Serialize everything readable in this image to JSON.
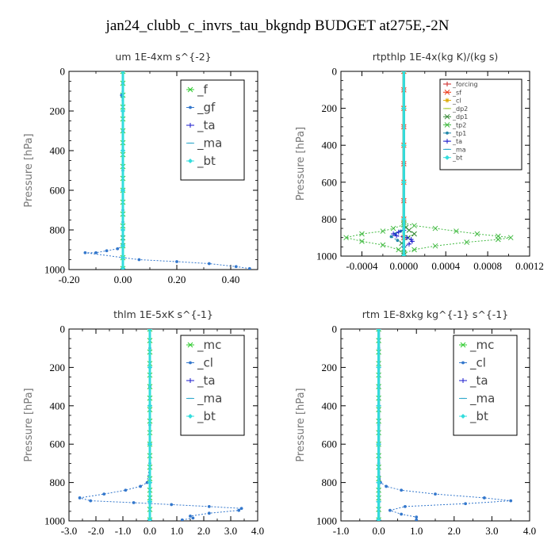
{
  "figure_title": "jan24_clubb_c_invrs_tau_bkgndp  BUDGET at275E,-2N",
  "chart_data": [
    {
      "type": "line",
      "title": "um  1E-4xm s^{-2}",
      "ylabel": "Pressure [hPa]",
      "xlim": [
        -0.2,
        0.5
      ],
      "ylim": [
        1000,
        0
      ],
      "xticks": [
        "-0.20",
        "0.00",
        "0.20",
        "0.40"
      ],
      "xtick_values": [
        -0.2,
        0.0,
        0.2,
        0.4
      ],
      "yticks": [
        0,
        200,
        400,
        600,
        800,
        1000
      ],
      "legend_size": "big",
      "series": [
        {
          "name": "_f",
          "color": "#33cc33",
          "marker": "x",
          "x": [
            0,
            0,
            0,
            0,
            0,
            0,
            0,
            0,
            0,
            0,
            0,
            0,
            0,
            0,
            0,
            0,
            0,
            0
          ],
          "y": [
            0,
            60,
            120,
            180,
            240,
            300,
            360,
            420,
            480,
            540,
            600,
            660,
            720,
            780,
            840,
            880,
            940,
            995
          ]
        },
        {
          "name": "_gf",
          "color": "#3377cc",
          "marker": "dot",
          "x": [
            0,
            0,
            -0.005,
            0,
            0,
            0,
            0,
            0,
            0,
            0,
            0,
            0,
            0,
            0,
            0,
            -0.02,
            -0.06,
            -0.1,
            -0.14,
            0.06,
            0.2,
            0.32,
            0.42,
            0.47
          ],
          "y": [
            0,
            60,
            120,
            200,
            300,
            400,
            500,
            600,
            700,
            760,
            800,
            830,
            850,
            870,
            880,
            895,
            905,
            915,
            915,
            950,
            960,
            970,
            985,
            995
          ]
        },
        {
          "name": "_ta",
          "color": "#1a1acc",
          "marker": "plus",
          "x": [
            0,
            0,
            0,
            0,
            0,
            0,
            0,
            0
          ],
          "y": [
            0,
            200,
            400,
            600,
            800,
            880,
            940,
            995
          ]
        },
        {
          "name": "_ma",
          "color": "#33aacc",
          "marker": "dash",
          "x": [
            0,
            0,
            0,
            0,
            0,
            0,
            0,
            0
          ],
          "y": [
            0,
            200,
            400,
            600,
            800,
            880,
            940,
            995
          ]
        },
        {
          "name": "_bt",
          "color": "#33dddd",
          "marker": "diamond",
          "x": [
            0,
            0,
            0,
            0,
            0,
            0,
            0,
            0
          ],
          "y": [
            0,
            200,
            400,
            600,
            800,
            880,
            940,
            995
          ]
        }
      ]
    },
    {
      "type": "line",
      "title": "rtpthlp  1E-4x(kg K)/(kg s)",
      "ylabel": "Pressure [hPa]",
      "xlim": [
        -0.0006,
        0.0012
      ],
      "ylim": [
        1000,
        0
      ],
      "xticks": [
        "-0.0004",
        "0.0000",
        "0.0004",
        "0.0008",
        "0.0012"
      ],
      "xtick_values": [
        -0.0004,
        0.0,
        0.0004,
        0.0008,
        0.0012
      ],
      "yticks": [
        0,
        200,
        400,
        600,
        800,
        1000
      ],
      "legend_size": "small",
      "series": [
        {
          "name": "_forcing",
          "color": "#cc2222",
          "marker": "plus",
          "x": [
            0,
            0,
            0,
            0,
            0,
            0,
            0,
            0,
            0,
            0,
            0
          ],
          "y": [
            0,
            100,
            200,
            300,
            400,
            500,
            600,
            700,
            800,
            900,
            995
          ]
        },
        {
          "name": "_sf",
          "color": "#ee3311",
          "marker": "x",
          "x": [
            0,
            0,
            0,
            0,
            0,
            0,
            0,
            0,
            0,
            0,
            0
          ],
          "y": [
            0,
            100,
            200,
            300,
            400,
            500,
            600,
            700,
            800,
            900,
            995
          ]
        },
        {
          "name": "_cl",
          "color": "#ddaa00",
          "marker": "star",
          "x": [
            0,
            0,
            0,
            0,
            0,
            0
          ],
          "y": [
            0,
            200,
            400,
            600,
            800,
            995
          ]
        },
        {
          "name": "_dp2",
          "color": "#aacc33",
          "marker": "dash",
          "x": [
            0,
            0,
            0,
            0,
            0,
            0
          ],
          "y": [
            0,
            200,
            400,
            600,
            800,
            995
          ]
        },
        {
          "name": "_dp1",
          "color": "#338833",
          "marker": "x",
          "x": [
            0,
            2e-05,
            5e-05,
            0.0001,
            4e-05,
            -2e-05,
            0,
            0
          ],
          "y": [
            830,
            845,
            860,
            880,
            900,
            930,
            960,
            995
          ]
        },
        {
          "name": "_tp2",
          "color": "#44bb44",
          "marker": "x",
          "x": [
            0,
            0.0001,
            0.0003,
            0.0005,
            0.0007,
            0.0009,
            0.00102,
            0.0009,
            0.0006,
            0.0003,
            0.0001,
            0,
            0,
            -0.0001,
            -0.0002,
            -0.0004,
            -0.00055,
            -0.0004,
            -0.0002,
            -5e-05,
            0
          ],
          "y": [
            820,
            835,
            850,
            865,
            880,
            892,
            900,
            910,
            925,
            945,
            965,
            985,
            830,
            850,
            865,
            880,
            900,
            920,
            940,
            965,
            985
          ]
        },
        {
          "name": "_tp1",
          "color": "#2288aa",
          "marker": "dot",
          "x": [
            0,
            -3e-05,
            -8e-05,
            -0.00012,
            -6e-05,
            0
          ],
          "y": [
            850,
            865,
            880,
            895,
            915,
            940
          ]
        },
        {
          "name": "_ta",
          "color": "#1a1acc",
          "marker": "plus",
          "x": [
            0,
            -5e-05,
            -0.0001,
            -7e-05,
            3e-05,
            7e-05,
            8e-05,
            5e-05,
            0
          ],
          "y": [
            860,
            870,
            880,
            890,
            900,
            910,
            920,
            935,
            950
          ]
        },
        {
          "name": "_ma",
          "color": "#33aacc",
          "marker": "dash",
          "x": [
            0,
            0,
            0,
            0,
            0,
            0
          ],
          "y": [
            0,
            200,
            400,
            600,
            800,
            995
          ]
        },
        {
          "name": "_bt",
          "color": "#33dddd",
          "marker": "diamond",
          "x": [
            0,
            0,
            0,
            0,
            0,
            0
          ],
          "y": [
            0,
            200,
            400,
            600,
            800,
            995
          ]
        }
      ]
    },
    {
      "type": "line",
      "title": "thlm  1E-5xK s^{-1}",
      "ylabel": "Pressure [hPa]",
      "xlim": [
        -3.0,
        4.0
      ],
      "ylim": [
        1000,
        0
      ],
      "xticks": [
        "-3.0",
        "-2.0",
        "-1.0",
        "0.0",
        "1.0",
        "2.0",
        "3.0",
        "4.0"
      ],
      "xtick_values": [
        -3,
        -2,
        -1,
        0,
        1,
        2,
        3,
        4
      ],
      "yticks": [
        0,
        200,
        400,
        600,
        800,
        1000
      ],
      "legend_size": "big",
      "series": [
        {
          "name": "_mc",
          "color": "#33cc33",
          "marker": "x",
          "x": [
            0,
            0,
            0,
            0,
            0,
            0,
            0,
            0,
            0,
            0,
            0,
            0,
            0,
            0,
            0,
            0,
            0,
            0
          ],
          "y": [
            0,
            60,
            120,
            180,
            240,
            300,
            360,
            420,
            480,
            540,
            600,
            660,
            720,
            780,
            840,
            880,
            940,
            995
          ]
        },
        {
          "name": "_cl",
          "color": "#3377cc",
          "marker": "dot",
          "x": [
            0,
            0,
            0,
            0,
            0,
            0,
            0,
            0,
            -0.1,
            -0.35,
            -0.9,
            -1.7,
            -2.6,
            -2.2,
            -0.6,
            0.8,
            2.2,
            3.4,
            3.3,
            2.2,
            1.5,
            1.6,
            1.2
          ],
          "y": [
            0,
            100,
            200,
            300,
            400,
            500,
            600,
            700,
            800,
            820,
            840,
            860,
            880,
            895,
            905,
            915,
            925,
            935,
            945,
            960,
            975,
            985,
            995
          ]
        },
        {
          "name": "_ta",
          "color": "#1a1acc",
          "marker": "plus",
          "x": [
            0,
            0,
            0,
            0,
            0,
            0,
            0
          ],
          "y": [
            0,
            200,
            400,
            600,
            800,
            900,
            995
          ]
        },
        {
          "name": "_ma",
          "color": "#33aacc",
          "marker": "dash",
          "x": [
            0,
            0,
            0,
            0,
            0,
            0,
            0
          ],
          "y": [
            0,
            200,
            400,
            600,
            800,
            900,
            995
          ]
        },
        {
          "name": "_bt",
          "color": "#33dddd",
          "marker": "diamond",
          "x": [
            0,
            0,
            0,
            0,
            0,
            0,
            0
          ],
          "y": [
            0,
            200,
            400,
            600,
            800,
            900,
            995
          ]
        }
      ]
    },
    {
      "type": "line",
      "title": "rtm  1E-8xkg kg^{-1} s^{-1}",
      "ylabel": "Pressure [hPa]",
      "xlim": [
        -1.0,
        4.0
      ],
      "ylim": [
        1000,
        0
      ],
      "xticks": [
        "-1.0",
        "0.0",
        "1.0",
        "2.0",
        "3.0",
        "4.0"
      ],
      "xtick_values": [
        -1,
        0,
        1,
        2,
        3,
        4
      ],
      "yticks": [
        0,
        200,
        400,
        600,
        800,
        1000
      ],
      "legend_size": "big",
      "series": [
        {
          "name": "_mc",
          "color": "#33cc33",
          "marker": "x",
          "x": [
            0,
            0,
            0,
            0,
            0,
            0,
            0,
            0,
            0,
            0,
            0,
            0,
            0,
            0,
            0,
            0,
            0,
            0
          ],
          "y": [
            0,
            60,
            120,
            180,
            240,
            300,
            360,
            420,
            480,
            540,
            600,
            660,
            720,
            780,
            840,
            880,
            940,
            995
          ]
        },
        {
          "name": "_cl",
          "color": "#3377cc",
          "marker": "dot",
          "x": [
            0,
            0,
            0,
            0,
            0,
            0,
            0,
            0,
            0.05,
            0.2,
            0.6,
            1.5,
            2.8,
            3.5,
            2.3,
            0.7,
            0.3,
            0.6,
            1.0,
            1.0
          ],
          "y": [
            0,
            100,
            200,
            300,
            400,
            500,
            600,
            700,
            800,
            820,
            840,
            860,
            880,
            895,
            910,
            925,
            945,
            965,
            980,
            995
          ]
        },
        {
          "name": "_ta",
          "color": "#1a1acc",
          "marker": "plus",
          "x": [
            0,
            0,
            0,
            0,
            0,
            0,
            0
          ],
          "y": [
            0,
            200,
            400,
            600,
            800,
            900,
            995
          ]
        },
        {
          "name": "_ma",
          "color": "#33aacc",
          "marker": "dash",
          "x": [
            0,
            0,
            0,
            0,
            0,
            0,
            0
          ],
          "y": [
            0,
            200,
            400,
            600,
            800,
            900,
            995
          ]
        },
        {
          "name": "_bt",
          "color": "#33dddd",
          "marker": "diamond",
          "x": [
            0,
            0,
            0,
            0,
            0,
            0,
            0
          ],
          "y": [
            0,
            200,
            400,
            600,
            800,
            900,
            995
          ]
        }
      ]
    }
  ]
}
